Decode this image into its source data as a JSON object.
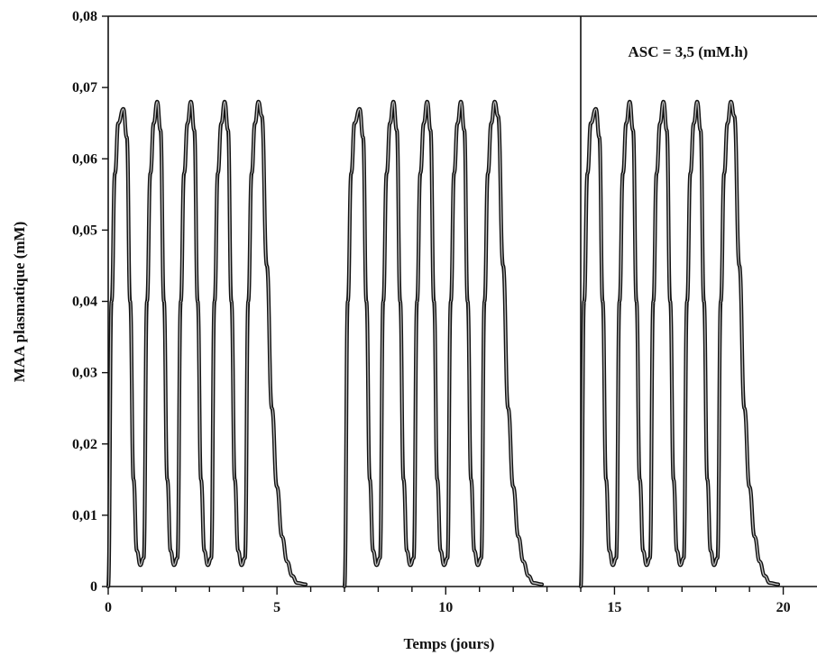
{
  "chart_data": {
    "type": "line",
    "title": "",
    "xlabel": "Temps (jours)",
    "ylabel": "MAA plasmatique (mM)",
    "xlim": [
      0,
      21
    ],
    "ylim": [
      0,
      0.08
    ],
    "x_ticks": [
      0,
      5,
      10,
      15,
      20
    ],
    "x_tick_labels": [
      "0",
      "5",
      "10",
      "15",
      "20"
    ],
    "x_minor_ticks": [
      1,
      2,
      3,
      4,
      6,
      7,
      8,
      9,
      11,
      12,
      13,
      14,
      16,
      17,
      18,
      19
    ],
    "y_ticks": [
      0,
      0.01,
      0.02,
      0.03,
      0.04,
      0.05,
      0.06,
      0.07,
      0.08
    ],
    "y_tick_labels": [
      "0",
      "0,01",
      "0,02",
      "0,03",
      "0,04",
      "0,05",
      "0,06",
      "0,07",
      "0,08"
    ],
    "vertical_lines_x": [
      14
    ],
    "grid": false,
    "annotation": "ASC = 3,5 (mM.h)",
    "series": [
      {
        "x": [
          0,
          0.1,
          0.2,
          0.3,
          0.45,
          0.55,
          0.65,
          0.75,
          0.85,
          0.95,
          1.05,
          1.15,
          1.25,
          1.35,
          1.45,
          1.55,
          1.65,
          1.75,
          1.85,
          1.95,
          2.05,
          2.15,
          2.25,
          2.35,
          2.45,
          2.55,
          2.65,
          2.75,
          2.85,
          2.95,
          3.05,
          3.15,
          3.25,
          3.35,
          3.45,
          3.55,
          3.65,
          3.75,
          3.85,
          3.95,
          4.05,
          4.15,
          4.25,
          4.35,
          4.45,
          4.55,
          4.7,
          4.85,
          5.0,
          5.15,
          5.3,
          5.45,
          5.6,
          5.85
        ],
        "y": [
          0,
          0.04,
          0.058,
          0.065,
          0.067,
          0.063,
          0.04,
          0.015,
          0.005,
          0.003,
          0.004,
          0.04,
          0.058,
          0.065,
          0.068,
          0.064,
          0.04,
          0.015,
          0.005,
          0.003,
          0.004,
          0.04,
          0.058,
          0.065,
          0.068,
          0.064,
          0.04,
          0.015,
          0.005,
          0.003,
          0.004,
          0.04,
          0.058,
          0.065,
          0.068,
          0.064,
          0.04,
          0.015,
          0.005,
          0.003,
          0.004,
          0.04,
          0.058,
          0.065,
          0.068,
          0.066,
          0.045,
          0.025,
          0.014,
          0.007,
          0.0035,
          0.0015,
          0.0005,
          0.0003
        ]
      },
      {
        "x": [
          7.0,
          7.1,
          7.2,
          7.3,
          7.45,
          7.55,
          7.65,
          7.75,
          7.85,
          7.95,
          8.05,
          8.15,
          8.25,
          8.35,
          8.45,
          8.55,
          8.65,
          8.75,
          8.85,
          8.95,
          9.05,
          9.15,
          9.25,
          9.35,
          9.45,
          9.55,
          9.65,
          9.75,
          9.85,
          9.95,
          10.05,
          10.15,
          10.25,
          10.35,
          10.45,
          10.55,
          10.65,
          10.75,
          10.85,
          10.95,
          11.05,
          11.15,
          11.25,
          11.35,
          11.45,
          11.55,
          11.7,
          11.85,
          12.0,
          12.15,
          12.3,
          12.45,
          12.6,
          12.85
        ],
        "y": [
          0,
          0.04,
          0.058,
          0.065,
          0.067,
          0.063,
          0.04,
          0.015,
          0.005,
          0.003,
          0.004,
          0.04,
          0.058,
          0.065,
          0.068,
          0.064,
          0.04,
          0.015,
          0.005,
          0.003,
          0.004,
          0.04,
          0.058,
          0.065,
          0.068,
          0.064,
          0.04,
          0.015,
          0.005,
          0.003,
          0.004,
          0.04,
          0.058,
          0.065,
          0.068,
          0.064,
          0.04,
          0.015,
          0.005,
          0.003,
          0.004,
          0.04,
          0.058,
          0.065,
          0.068,
          0.066,
          0.045,
          0.025,
          0.014,
          0.007,
          0.0035,
          0.0015,
          0.0005,
          0.0003
        ]
      },
      {
        "x": [
          14.0,
          14.1,
          14.2,
          14.3,
          14.45,
          14.55,
          14.65,
          14.75,
          14.85,
          14.95,
          15.05,
          15.15,
          15.25,
          15.35,
          15.45,
          15.55,
          15.65,
          15.75,
          15.85,
          15.95,
          16.05,
          16.15,
          16.25,
          16.35,
          16.45,
          16.55,
          16.65,
          16.75,
          16.85,
          16.95,
          17.05,
          17.15,
          17.25,
          17.35,
          17.45,
          17.55,
          17.65,
          17.75,
          17.85,
          17.95,
          18.05,
          18.15,
          18.25,
          18.35,
          18.45,
          18.55,
          18.7,
          18.85,
          19.0,
          19.15,
          19.3,
          19.45,
          19.6,
          19.85
        ],
        "y": [
          0,
          0.04,
          0.058,
          0.065,
          0.067,
          0.063,
          0.04,
          0.015,
          0.005,
          0.003,
          0.004,
          0.04,
          0.058,
          0.065,
          0.068,
          0.064,
          0.04,
          0.015,
          0.005,
          0.003,
          0.004,
          0.04,
          0.058,
          0.065,
          0.068,
          0.064,
          0.04,
          0.015,
          0.005,
          0.003,
          0.004,
          0.04,
          0.058,
          0.065,
          0.068,
          0.064,
          0.04,
          0.015,
          0.005,
          0.003,
          0.004,
          0.04,
          0.058,
          0.065,
          0.068,
          0.066,
          0.045,
          0.025,
          0.014,
          0.007,
          0.0035,
          0.0015,
          0.0005,
          0.0003
        ]
      }
    ]
  }
}
